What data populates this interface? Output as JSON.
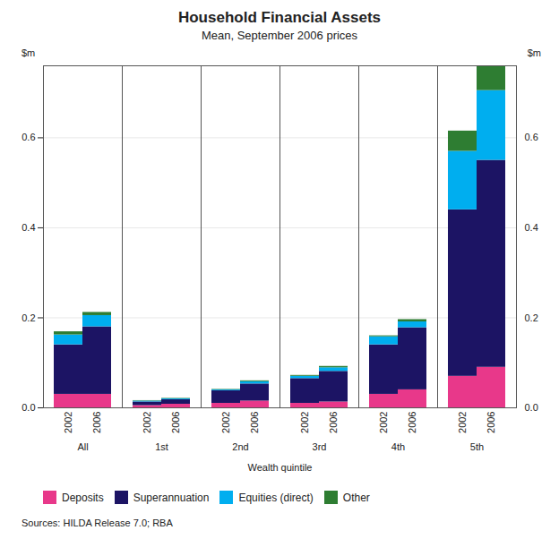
{
  "chart_data": {
    "type": "bar",
    "stacked": true,
    "title": "Household Financial Assets",
    "subtitle": "Mean, September 2006 prices",
    "xlabel": "Wealth quintile",
    "ylabel": "$m",
    "y2label": "$m",
    "source": "Sources: HILDA Release 7.0; RBA",
    "categories": [
      "All",
      "1st",
      "2nd",
      "3rd",
      "4th",
      "5th"
    ],
    "stacks": [
      "2002",
      "2006"
    ],
    "series": [
      {
        "name": "Deposits",
        "color": "#E8388A",
        "values": [
          [
            0.03,
            0.005,
            0.01,
            0.01,
            0.03,
            0.07
          ],
          [
            0.03,
            0.008,
            0.015,
            0.013,
            0.04,
            0.09
          ]
        ]
      },
      {
        "name": "Superannuation",
        "color": "#1C1464",
        "values": [
          [
            0.11,
            0.008,
            0.028,
            0.055,
            0.11,
            0.37
          ],
          [
            0.15,
            0.01,
            0.038,
            0.068,
            0.138,
            0.46
          ]
        ]
      },
      {
        "name": "Equities (direct)",
        "color": "#00AEEF",
        "values": [
          [
            0.022,
            0.002,
            0.002,
            0.005,
            0.018,
            0.13
          ],
          [
            0.025,
            0.002,
            0.005,
            0.008,
            0.013,
            0.155
          ]
        ]
      },
      {
        "name": "Other",
        "color": "#2E7D32",
        "values": [
          [
            0.007,
            0.001,
            0.001,
            0.002,
            0.002,
            0.045
          ],
          [
            0.007,
            0.001,
            0.002,
            0.003,
            0.005,
            0.055
          ]
        ]
      }
    ],
    "ylim": [
      0.0,
      0.76
    ],
    "yticks": [
      {
        "value": 0.0,
        "label": "0.0"
      },
      0.2,
      0.4,
      0.6
    ],
    "y2lim": [
      0.0,
      0.76
    ],
    "y2ticks": [
      {
        "value": 0.0,
        "label": "0.0"
      },
      0.2,
      0.4,
      0.6
    ],
    "grid": true,
    "legend": "bottom"
  }
}
